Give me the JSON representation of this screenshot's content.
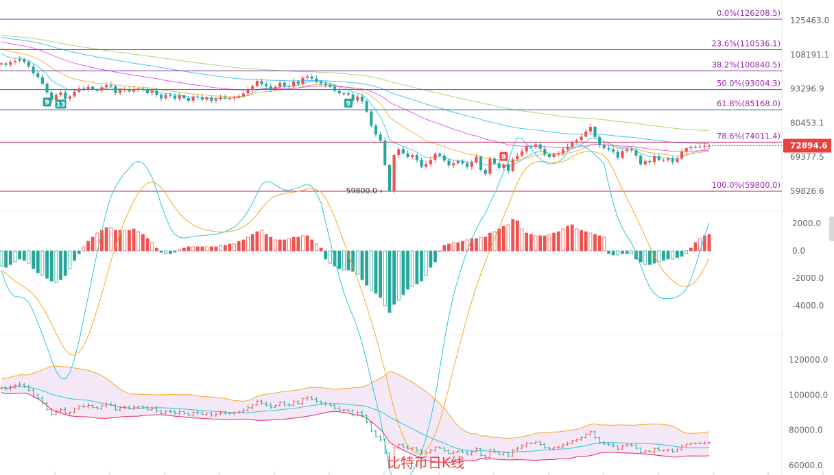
{
  "chart_data": {
    "type": "candlestick",
    "title": "比特币日K线",
    "last_price": "72894.6",
    "colors": {
      "up": "#ef5350",
      "down": "#26a69a",
      "fib_top": "#7b2c9e",
      "fib_blue": "#2f5bb7",
      "fib_pink": "#c2185b",
      "fib_label": "#9c27b0",
      "ma_orange": "#f5a623",
      "ma_cyan": "#26c6da",
      "ma_pink": "#e040fb",
      "ma_blue": "#29b6f6",
      "ma_green": "#9ccc65",
      "boll_band": "#f3e5f5",
      "price_box": "#e8413e"
    },
    "price_axis": {
      "ticks": [
        "125463.0",
        "108191.1",
        "93296.9",
        "80453.1",
        "69377.5",
        "59826.6"
      ],
      "range": [
        55000,
        130000
      ]
    },
    "fib_levels": [
      {
        "label": "0.0%(126208.5)",
        "price": 126208.5
      },
      {
        "label": "23.6%(110536.1)",
        "price": 110536.1
      },
      {
        "label": "38.2%(100840.5)",
        "price": 100840.5
      },
      {
        "label": "50.0%(93004.3)",
        "price": 93004.3
      },
      {
        "label": "61.8%(85168.0)",
        "price": 85168.0
      },
      {
        "label": "78.6%(74011.4)",
        "price": 74011.4
      },
      {
        "label": "100.0%(59800.0)",
        "price": 59800.0
      }
    ],
    "low_annotation": "59800.0",
    "markers": [
      {
        "text": "9",
        "type": "down",
        "index": 10
      },
      {
        "text": "13",
        "type": "down",
        "index": 13
      },
      {
        "text": "9",
        "type": "down",
        "index": 76
      },
      {
        "text": "9",
        "type": "up",
        "index": 110
      }
    ],
    "macd_axis": {
      "ticks": [
        "2000.0",
        "0.0",
        "-2000.0",
        "-4000.0"
      ],
      "range": [
        -6000,
        3000
      ]
    },
    "boll_axis": {
      "ticks": [
        "120000.0",
        "100000.0",
        "80000.0",
        "60000.0"
      ],
      "range": [
        55000,
        130000
      ]
    },
    "close_series": [
      104200,
      103500,
      104800,
      105300,
      106100,
      104900,
      102800,
      99800,
      98100,
      95400,
      91800,
      88900,
      90800,
      91800,
      89400,
      90300,
      92100,
      93400,
      93300,
      94100,
      93000,
      92500,
      93900,
      94800,
      94300,
      91600,
      93000,
      93100,
      92200,
      93000,
      93400,
      93100,
      91600,
      92500,
      90900,
      89500,
      90800,
      90500,
      89400,
      90600,
      89600,
      88600,
      90200,
      89900,
      89000,
      89800,
      88600,
      89200,
      89900,
      89600,
      89600,
      89900,
      90400,
      91400,
      92800,
      94400,
      96500,
      95200,
      94300,
      93100,
      94100,
      95800,
      94400,
      94200,
      96300,
      95200,
      97900,
      98400,
      97500,
      96300,
      95500,
      94900,
      94100,
      92500,
      91500,
      91500,
      91000,
      88700,
      90200,
      88400,
      84500,
      79500,
      76500,
      74500,
      67000,
      59800,
      70000,
      71800,
      70500,
      69400,
      70000,
      68500,
      66500,
      67300,
      68500,
      70400,
      69800,
      68300,
      66900,
      67500,
      68200,
      67500,
      66400,
      67800,
      69500,
      65600,
      64500,
      68900,
      67500,
      66200,
      67200,
      65300,
      68700,
      69800,
      71100,
      72700,
      72500,
      73300,
      71900,
      70200,
      69400,
      70200,
      70500,
      71700,
      72500,
      74100,
      74700,
      75800,
      77500,
      79100,
      75700,
      73000,
      72100,
      71700,
      71000,
      69200,
      71200,
      71700,
      71400,
      69800,
      67200,
      68200,
      67800,
      69600,
      68500,
      68500,
      68900,
      67900,
      68900,
      71000,
      72100,
      72500,
      72400,
      72600,
      72800,
      72894.6
    ],
    "macd_hist": [
      -1100,
      -1200,
      -1000,
      -800,
      -600,
      -700,
      -900,
      -1300,
      -1600,
      -1800,
      -2000,
      -2200,
      -2300,
      -2100,
      -1800,
      -1300,
      -700,
      -200,
      300,
      700,
      1000,
      1300,
      1500,
      1700,
      1700,
      1500,
      1500,
      1500,
      1500,
      1600,
      1400,
      1200,
      900,
      600,
      200,
      -100,
      -200,
      -200,
      -100,
      100,
      200,
      300,
      300,
      300,
      300,
      300,
      300,
      300,
      400,
      400,
      500,
      500,
      700,
      800,
      1000,
      1200,
      1400,
      1500,
      1200,
      1000,
      800,
      800,
      800,
      900,
      1000,
      1000,
      1100,
      1100,
      800,
      500,
      200,
      -600,
      -900,
      -1100,
      -1300,
      -1400,
      -1400,
      -1500,
      -1700,
      -2100,
      -2500,
      -2900,
      -3100,
      -3400,
      -4000,
      -4500,
      -3900,
      -3600,
      -3200,
      -2800,
      -2600,
      -2400,
      -2200,
      -1800,
      -1200,
      -800,
      0,
      400,
      500,
      600,
      600,
      700,
      800,
      900,
      900,
      1000,
      1000,
      1300,
      1400,
      1600,
      1800,
      1900,
      2300,
      2200,
      1600,
      1300,
      1200,
      1100,
      1100,
      1100,
      1200,
      1300,
      1400,
      1600,
      1800,
      1900,
      1600,
      1500,
      1400,
      1300,
      1200,
      1100,
      1000,
      -200,
      -300,
      -300,
      -200,
      -200,
      -200,
      -600,
      -800,
      -1000,
      -1000,
      -900,
      -800,
      -700,
      -600,
      -600,
      -500,
      -400,
      -200,
      200,
      600,
      900,
      1100,
      1200
    ]
  }
}
